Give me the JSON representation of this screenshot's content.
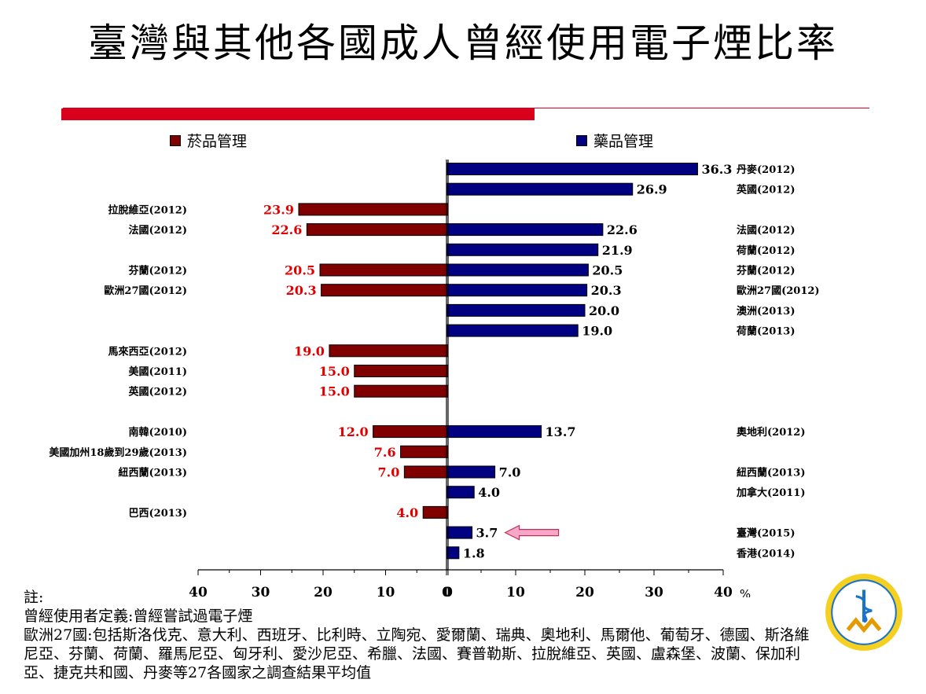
{
  "title": "臺灣與其他各國成人曾經使用電子煙比率",
  "colors": {
    "accent_red": "#d9001b",
    "tobacco": "#800000",
    "drug": "#000080",
    "arrow": "#f8a6c8"
  },
  "legend": {
    "tobacco": "菸品管理",
    "drug": "藥品管理"
  },
  "notes": {
    "label": "註:",
    "line1": "曾經使用者定義:曾經嘗試過電子煙",
    "line2": "歐洲27國:包括斯洛伐克、意大利、西班牙、比利時、立陶宛、愛爾蘭、瑞典、奧地利、馬爾他、葡萄牙、德國、斯洛維尼亞、芬蘭、荷蘭、羅馬尼亞、匈牙利、愛沙尼亞、希臘、法國、賽普勒斯、拉脫維亞、英國、盧森堡、波蘭、保加利亞、捷克共和國、丹麥等27各國家之調查結果平均值"
  },
  "chart_data": {
    "type": "bar",
    "orientation": "horizontal-butterfly",
    "unit": "%",
    "x_ticks_left": [
      "40",
      "30",
      "20",
      "10",
      "0"
    ],
    "x_ticks_right": [
      "0",
      "10",
      "20",
      "30",
      "40"
    ],
    "xlim": [
      0,
      40
    ],
    "highlight": "臺灣(2015)",
    "rows": [
      {
        "left_label": "",
        "left_value": null,
        "left_text": "",
        "right_label": "丹麥(2012)",
        "right_value": 36.3,
        "right_text": "36.3"
      },
      {
        "left_label": "",
        "left_value": null,
        "left_text": "",
        "right_label": "英國(2012)",
        "right_value": 26.9,
        "right_text": "26.9"
      },
      {
        "left_label": "拉脫維亞(2012)",
        "left_value": 23.9,
        "left_text": "23.9",
        "right_label": "",
        "right_value": null,
        "right_text": ""
      },
      {
        "left_label": "法國(2012)",
        "left_value": 22.6,
        "left_text": "22.6",
        "right_label": "法國(2012)",
        "right_value": 22.6,
        "right_text": "22.6"
      },
      {
        "left_label": "",
        "left_value": null,
        "left_text": "",
        "right_label": "荷蘭(2012)",
        "right_value": 21.9,
        "right_text": "21.9"
      },
      {
        "left_label": "芬蘭(2012)",
        "left_value": 20.5,
        "left_text": "20.5",
        "right_label": "芬蘭(2012)",
        "right_value": 20.5,
        "right_text": "20.5"
      },
      {
        "left_label": "歐洲27國(2012)",
        "left_value": 20.3,
        "left_text": "20.3",
        "right_label": "歐洲27國(2012)",
        "right_value": 20.3,
        "right_text": "20.3"
      },
      {
        "left_label": "",
        "left_value": null,
        "left_text": "",
        "right_label": "澳洲(2013)",
        "right_value": 20.0,
        "right_text": "20.0"
      },
      {
        "left_label": "",
        "left_value": null,
        "left_text": "",
        "right_label": "荷蘭(2013)",
        "right_value": 19.0,
        "right_text": "19.0"
      },
      {
        "left_label": "馬來西亞(2012)",
        "left_value": 19.0,
        "left_text": "19.0",
        "right_label": "",
        "right_value": null,
        "right_text": ""
      },
      {
        "left_label": "美國(2011)",
        "left_value": 15.0,
        "left_text": "15.0",
        "right_label": "",
        "right_value": null,
        "right_text": ""
      },
      {
        "left_label": "英國(2012)",
        "left_value": 15.0,
        "left_text": "15.0",
        "right_label": "",
        "right_value": null,
        "right_text": ""
      },
      {
        "left_label": "",
        "left_value": null,
        "left_text": "",
        "right_label": "",
        "right_value": null,
        "right_text": ""
      },
      {
        "left_label": "南韓(2010)",
        "left_value": 12.0,
        "left_text": "12.0",
        "right_label": "奧地利(2012)",
        "right_value": 13.7,
        "right_text": "13.7"
      },
      {
        "left_label": "美國加州18歲到29歲(2013)",
        "left_value": 7.6,
        "left_text": "7.6",
        "right_label": "",
        "right_value": null,
        "right_text": ""
      },
      {
        "left_label": "紐西蘭(2013)",
        "left_value": 7.0,
        "left_text": "7.0",
        "right_label": "紐西蘭(2013)",
        "right_value": 7.0,
        "right_text": "7.0"
      },
      {
        "left_label": "",
        "left_value": null,
        "left_text": "",
        "right_label": "加拿大(2011)",
        "right_value": 4.0,
        "right_text": "4.0"
      },
      {
        "left_label": "巴西(2013)",
        "left_value": 4.0,
        "left_text": "4.0",
        "right_label": "",
        "right_value": null,
        "right_text": ""
      },
      {
        "left_label": "",
        "left_value": null,
        "left_text": "",
        "right_label": "臺灣(2015)",
        "right_value": 3.7,
        "right_text": "3.7"
      },
      {
        "left_label": "",
        "left_value": null,
        "left_text": "",
        "right_label": "香港(2014)",
        "right_value": 1.8,
        "right_text": "1.8"
      }
    ]
  }
}
